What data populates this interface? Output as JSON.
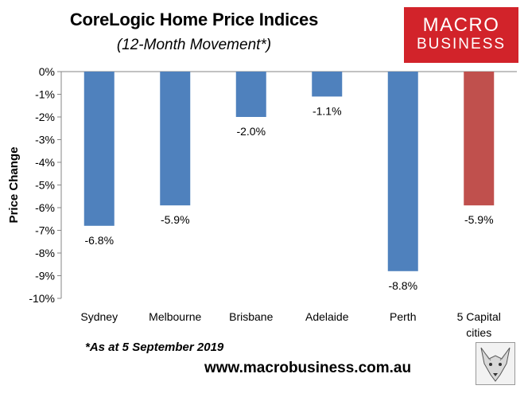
{
  "header": {
    "title": "CoreLogic Home Price Indices",
    "subtitle": "(12-Month Movement*)"
  },
  "logo": {
    "line1": "MACRO",
    "line2": "BUSINESS",
    "color": "#d2232a"
  },
  "footnote": "*As at 5 September 2019",
  "website": "www.macrobusiness.com.au",
  "chart_data": {
    "type": "bar",
    "title": "CoreLogic Home Price Indices",
    "subtitle": "(12-Month Movement*)",
    "xlabel": "",
    "ylabel": "Price Change",
    "categories": [
      "Sydney",
      "Melbourne",
      "Brisbane",
      "Adelaide",
      "Perth",
      "5 Capital cities"
    ],
    "category_lines": [
      [
        "Sydney"
      ],
      [
        "Melbourne"
      ],
      [
        "Brisbane"
      ],
      [
        "Adelaide"
      ],
      [
        "Perth"
      ],
      [
        "5 Capital",
        "cities"
      ]
    ],
    "values": [
      -6.8,
      -5.9,
      -2.0,
      -1.1,
      -8.8,
      -5.9
    ],
    "data_labels": [
      "-6.8%",
      "-5.9%",
      "-2.0%",
      "-1.1%",
      "-8.8%",
      "-5.9%"
    ],
    "bar_colors": [
      "#4f81bd",
      "#4f81bd",
      "#4f81bd",
      "#4f81bd",
      "#4f81bd",
      "#c0504d"
    ],
    "ylim": [
      -10,
      0
    ],
    "yticks": [
      0,
      -1,
      -2,
      -3,
      -4,
      -5,
      -6,
      -7,
      -8,
      -9,
      -10
    ],
    "ytick_labels": [
      "0%",
      "-1%",
      "-2%",
      "-3%",
      "-4%",
      "-5%",
      "-6%",
      "-7%",
      "-8%",
      "-9%",
      "-10%"
    ],
    "grid": false,
    "legend": "none"
  }
}
